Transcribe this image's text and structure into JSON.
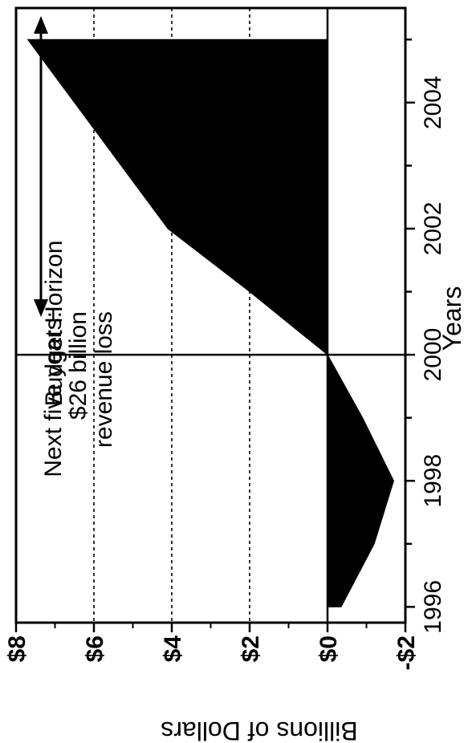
{
  "chart_data": {
    "type": "area",
    "orientation": "rotated-90",
    "title": "",
    "xlabel": "Years",
    "ylabel": "Billions of Dollars",
    "xlim": [
      1995.75,
      2005.5
    ],
    "ylim": [
      -2,
      8
    ],
    "x_ticks": [
      1996,
      1998,
      2000,
      2002,
      2004
    ],
    "x_tick_labels": [
      "1996",
      "1998",
      "2000",
      "2002",
      "2004"
    ],
    "y_ticks": [
      -2,
      0,
      2,
      4,
      6,
      8
    ],
    "y_tick_labels": [
      "-$2",
      "$0",
      "$2",
      "$4",
      "$6",
      "$8"
    ],
    "grid": "dashed horizontal lines at $2, $4, $6, $8",
    "series": [
      {
        "values_x": [
          1996,
          1997,
          1998,
          1999,
          2000,
          2001,
          2002,
          2003,
          2004,
          2005
        ],
        "values_y": [
          -0.35,
          -1.2,
          -1.7,
          -0.9,
          0.0,
          2.0,
          4.1,
          5.3,
          6.5,
          7.7
        ],
        "color": "#000000"
      }
    ],
    "vline_x": 2000,
    "annotations": {
      "budget_horizon": "Budget Horizon",
      "next_line1": "Next five years:",
      "next_line2": "$26 billion",
      "next_line3": "revenue loss"
    }
  }
}
